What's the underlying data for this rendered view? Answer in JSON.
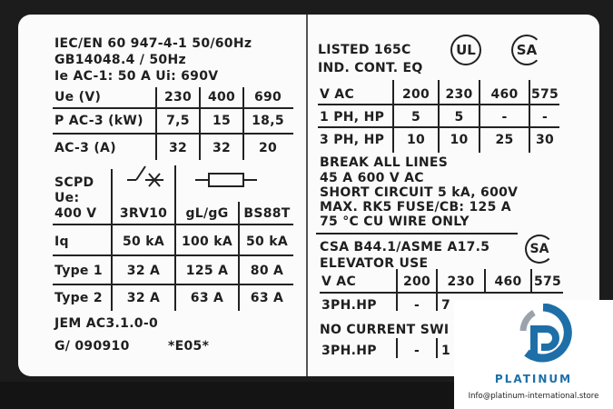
{
  "left": {
    "line1": "IEC/EN 60 947-4-1   50/60Hz",
    "line2": "GB14048.4  /  50Hz",
    "line3": "Ie AC-1: 50 A Ui: 690V",
    "rating_table": {
      "rows": [
        {
          "label": "Ue   (V)",
          "values": [
            "230",
            "400",
            "690"
          ]
        },
        {
          "label": "P AC-3 (kW)",
          "values": [
            "7,5",
            "15",
            "18,5"
          ]
        },
        {
          "label": "AC-3  (A)",
          "values": [
            "32",
            "32",
            "20"
          ]
        }
      ]
    },
    "scpd_table": {
      "label_lines": [
        "SCPD",
        "Ue:",
        "400 V"
      ],
      "headers": [
        "3RV10",
        "gL/gG",
        "BS88T"
      ],
      "rows": [
        {
          "label": "Iq",
          "values": [
            "50 kA",
            "100 kA",
            "50 kA"
          ]
        },
        {
          "label": "Type 1",
          "values": [
            "32 A",
            "125 A",
            "80 A"
          ]
        },
        {
          "label": "Type 2",
          "values": [
            "32 A",
            "63 A",
            "63 A"
          ]
        }
      ]
    },
    "jem": "JEM AC3.1.0-0",
    "code": "G/ 090910",
    "edition": "*E05*"
  },
  "right": {
    "listed": "LISTED 165C",
    "ind": "IND. CONT. EQ",
    "ul_mark": "UL",
    "csa_mark": "SA",
    "hp_table": {
      "headers": [
        "V AC",
        "200",
        "230",
        "460",
        "575"
      ],
      "rows": [
        {
          "label": "1 PH, HP",
          "values": [
            "5",
            "5",
            "-",
            "-"
          ]
        },
        {
          "label": "3 PH, HP",
          "values": [
            "10",
            "10",
            "25",
            "30"
          ]
        }
      ]
    },
    "notes": [
      "BREAK ALL LINES",
      "45 A 600 V AC",
      "SHORT CIRCUIT 5 kA, 600V",
      "MAX. RK5 FUSE/CB: 125 A",
      "75 °C CU WIRE ONLY"
    ],
    "csa_std": "CSA B44.1/ASME A17.5",
    "elevator": "ELEVATOR USE",
    "elev_table": {
      "headers": [
        "V AC",
        "200",
        "230",
        "460",
        "575"
      ],
      "row1": {
        "label": "3PH.HP",
        "values": [
          "-",
          "7"
        ]
      },
      "no_current": "NO CURRENT SWI",
      "row2": {
        "label": "3PH.HP",
        "values": [
          "-",
          "1"
        ]
      }
    }
  },
  "watermark": {
    "brand": "PLATINUM",
    "email": "Info@platinum-international.store",
    "brand_color": "#1e6fa8"
  }
}
